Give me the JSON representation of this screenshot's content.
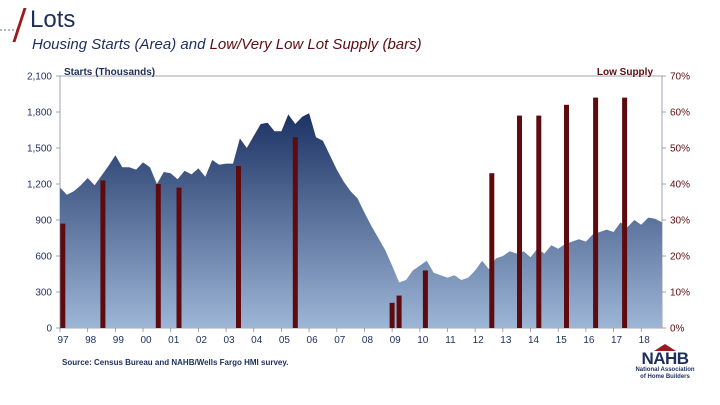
{
  "header": {
    "title": "Lots",
    "subtitle_part1": "Housing Starts (Area) and ",
    "subtitle_part2": "Low/Very Low Lot Supply (bars)"
  },
  "source": "Source: Census Bureau and NAHB/Wells Fargo HMI survey.",
  "logo": {
    "mark": "NAHB",
    "line1": "National Association",
    "line2": "of Home Builders"
  },
  "colors": {
    "area_top": "#1c3264",
    "area_bottom": "#9db6d6",
    "bars": "#5e0b10",
    "text": "#1c2e5c"
  },
  "chart_data": {
    "type": "area+bar",
    "title": "",
    "ylabel": "Starts (Thousands)",
    "ylabel2": "Low Supply",
    "ylim": [
      0,
      2100
    ],
    "ylim2": [
      0,
      70
    ],
    "yticks": [
      "0",
      "300",
      "600",
      "900",
      "1,200",
      "1,500",
      "1,800",
      "2,100"
    ],
    "yticks2": [
      "0%",
      "10%",
      "20%",
      "30%",
      "40%",
      "50%",
      "60%",
      "70%"
    ],
    "xticks": [
      "97",
      "98",
      "99",
      "00",
      "01",
      "02",
      "03",
      "04",
      "05",
      "06",
      "07",
      "08",
      "09",
      "10",
      "11",
      "12",
      "13",
      "14",
      "15",
      "16",
      "17",
      "18"
    ],
    "xlim": [
      1997.0,
      2018.75
    ],
    "series": [
      {
        "name": "Housing Starts",
        "kind": "area",
        "x": [
          1997.0,
          1997.25,
          1997.5,
          1997.75,
          1998.0,
          1998.25,
          1998.5,
          1998.75,
          1999.0,
          1999.25,
          1999.5,
          1999.75,
          2000.0,
          2000.25,
          2000.5,
          2000.75,
          2001.0,
          2001.25,
          2001.5,
          2001.75,
          2002.0,
          2002.25,
          2002.5,
          2002.75,
          2003.0,
          2003.25,
          2003.5,
          2003.75,
          2004.0,
          2004.25,
          2004.5,
          2004.75,
          2005.0,
          2005.25,
          2005.5,
          2005.75,
          2006.0,
          2006.25,
          2006.5,
          2006.75,
          2007.0,
          2007.25,
          2007.5,
          2007.75,
          2008.0,
          2008.25,
          2008.5,
          2008.75,
          2009.0,
          2009.25,
          2009.5,
          2009.75,
          2010.0,
          2010.25,
          2010.5,
          2010.75,
          2011.0,
          2011.25,
          2011.5,
          2011.75,
          2012.0,
          2012.25,
          2012.5,
          2012.75,
          2013.0,
          2013.25,
          2013.5,
          2013.75,
          2014.0,
          2014.25,
          2014.5,
          2014.75,
          2015.0,
          2015.25,
          2015.5,
          2015.75,
          2016.0,
          2016.25,
          2016.5,
          2016.75,
          2017.0,
          2017.25,
          2017.5,
          2017.75,
          2018.0,
          2018.25,
          2018.5,
          2018.75
        ],
        "values": [
          1170,
          1110,
          1140,
          1190,
          1250,
          1190,
          1270,
          1350,
          1440,
          1340,
          1340,
          1320,
          1380,
          1340,
          1200,
          1300,
          1290,
          1240,
          1310,
          1280,
          1330,
          1260,
          1400,
          1360,
          1370,
          1370,
          1580,
          1500,
          1600,
          1700,
          1710,
          1640,
          1640,
          1780,
          1700,
          1760,
          1790,
          1590,
          1560,
          1440,
          1320,
          1220,
          1140,
          1080,
          960,
          850,
          750,
          650,
          520,
          380,
          400,
          480,
          520,
          560,
          460,
          440,
          420,
          440,
          400,
          420,
          480,
          560,
          490,
          580,
          600,
          640,
          620,
          640,
          590,
          660,
          620,
          690,
          660,
          700,
          720,
          740,
          720,
          780,
          800,
          820,
          800,
          880,
          840,
          900,
          860,
          920,
          910,
          880
        ]
      },
      {
        "name": "Low/Very Low Lot Supply",
        "kind": "bar",
        "axis": "right",
        "x": [
          1997.1,
          1998.55,
          2000.55,
          2001.3,
          2003.45,
          2005.5,
          2009.0,
          2009.25,
          2010.2,
          2012.6,
          2013.6,
          2014.3,
          2015.3,
          2016.35,
          2017.4
        ],
        "values": [
          29,
          41,
          40,
          39,
          45,
          53,
          7,
          9,
          16,
          43,
          59,
          59,
          62,
          64,
          64
        ]
      }
    ]
  }
}
